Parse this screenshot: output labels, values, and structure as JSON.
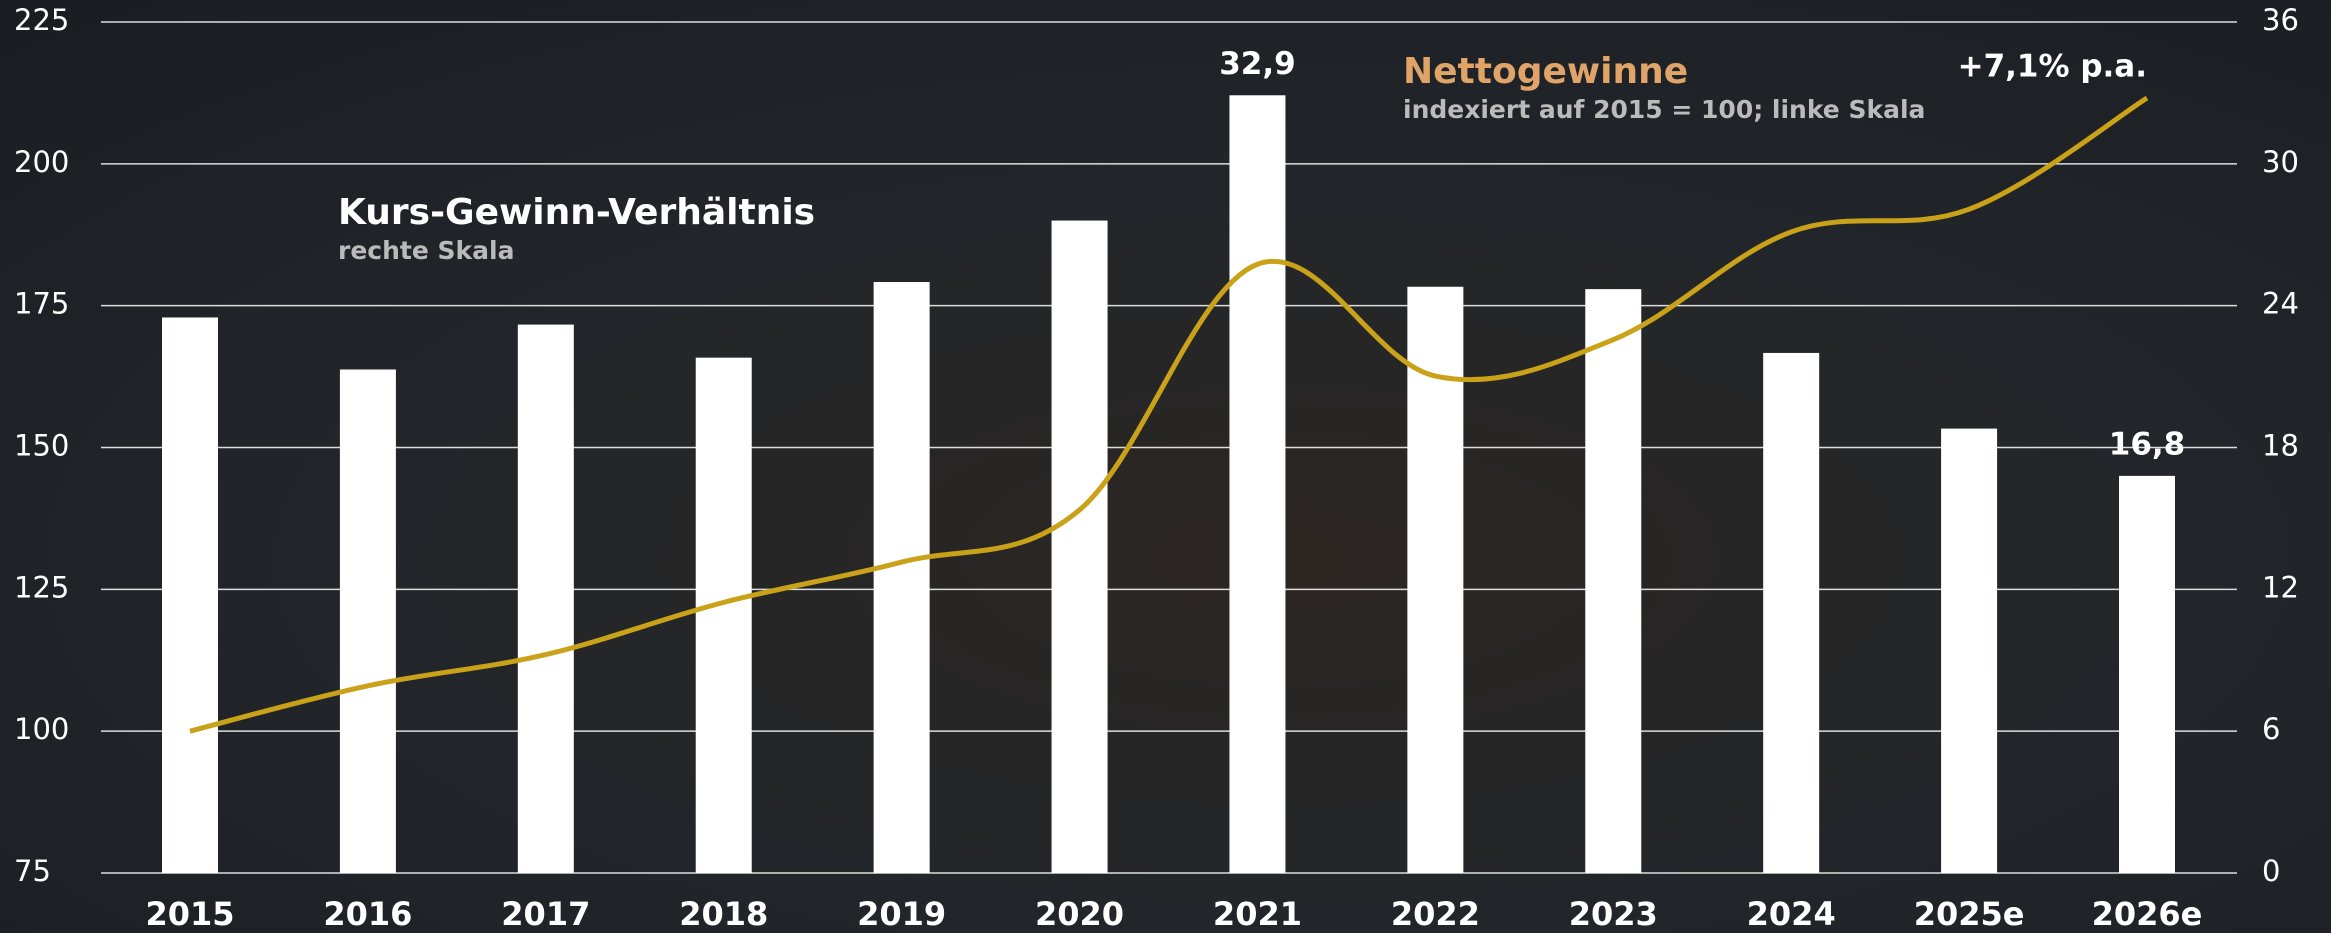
{
  "chart_data": {
    "type": "bar_line",
    "categories": [
      "2015",
      "2016",
      "2017",
      "2018",
      "2019",
      "2020",
      "2021",
      "2022",
      "2023",
      "2024",
      "2025e",
      "2026e"
    ],
    "series": [
      {
        "name": "Kurs-Gewinn-Verhältnis",
        "scale_note": "rechte Skala",
        "type": "bar",
        "axis": "y2",
        "color": "#ffffff",
        "values": [
          23.5,
          21.3,
          23.2,
          21.8,
          25.0,
          27.6,
          32.9,
          24.8,
          24.7,
          22.0,
          18.8,
          16.8
        ],
        "value_labels": [
          null,
          null,
          null,
          null,
          null,
          null,
          "32,9",
          null,
          null,
          null,
          null,
          "16,8"
        ]
      },
      {
        "name": "Nettogewinne",
        "scale_note": "indexiert auf 2015 = 100; linke Skala",
        "type": "line",
        "axis": "y",
        "color": "#c9a21a",
        "legend_color": "#e0a468",
        "values": [
          100,
          108,
          113.5,
          122.7,
          129.8,
          139,
          182.3,
          162.6,
          169,
          188,
          192,
          211.6
        ]
      }
    ],
    "annotation": "+7,1% p.a.",
    "ylim": [
      75,
      225
    ],
    "yticks": [
      75,
      100,
      125,
      150,
      175,
      200,
      225
    ],
    "y2lim": [
      0,
      36
    ],
    "y2ticks": [
      0,
      6,
      12,
      18,
      24,
      30,
      36
    ],
    "grid": true
  }
}
